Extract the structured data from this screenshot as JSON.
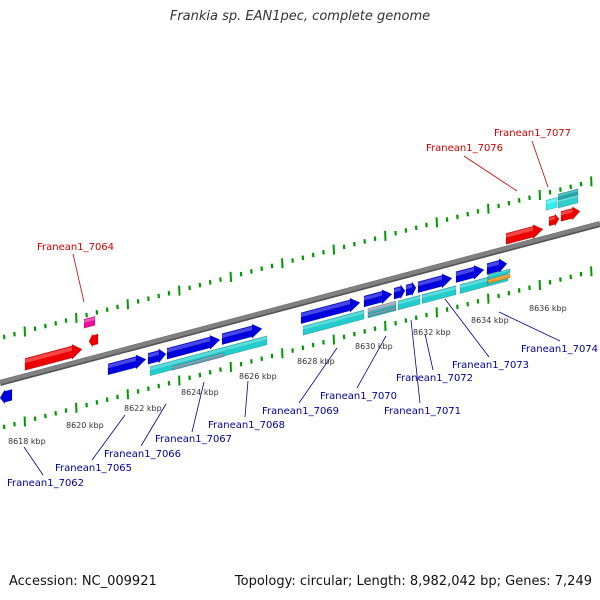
{
  "title": "Frankia sp. EAN1pec, complete genome",
  "footer": {
    "accession": "Accession: NC_009921",
    "summary": "Topology: circular; Length: 8,982,042 bp; Genes: 7,249"
  },
  "colors": {
    "forward_gene": "#0000dd",
    "reverse_gene": "#ee0000",
    "pseudo_gene": "#ee1199",
    "cds_feature": "#22cccc",
    "misc_feature": "#6699aa",
    "orange_feature": "#ee9922",
    "axis": "#808080",
    "tick": "#009900",
    "label_top": "#cc0000",
    "label_bottom": "#000099"
  },
  "ticks": [
    "8618 kbp",
    "8620 kbp",
    "8622 kbp",
    "8624 kbp",
    "8626 kbp",
    "8628 kbp",
    "8630 kbp",
    "8632 kbp",
    "8634 kbp",
    "8636 kbp"
  ],
  "labels_top": [
    "Franean1_7064",
    "Franean1_7076",
    "Franean1_7077"
  ],
  "labels_bottom": [
    "Franean1_7062",
    "Franean1_7065",
    "Franean1_7066",
    "Franean1_7067",
    "Franean1_7068",
    "Franean1_7069",
    "Franean1_7070",
    "Franean1_7071",
    "Franean1_7072",
    "Franean1_7073",
    "Franean1_7074"
  ]
}
